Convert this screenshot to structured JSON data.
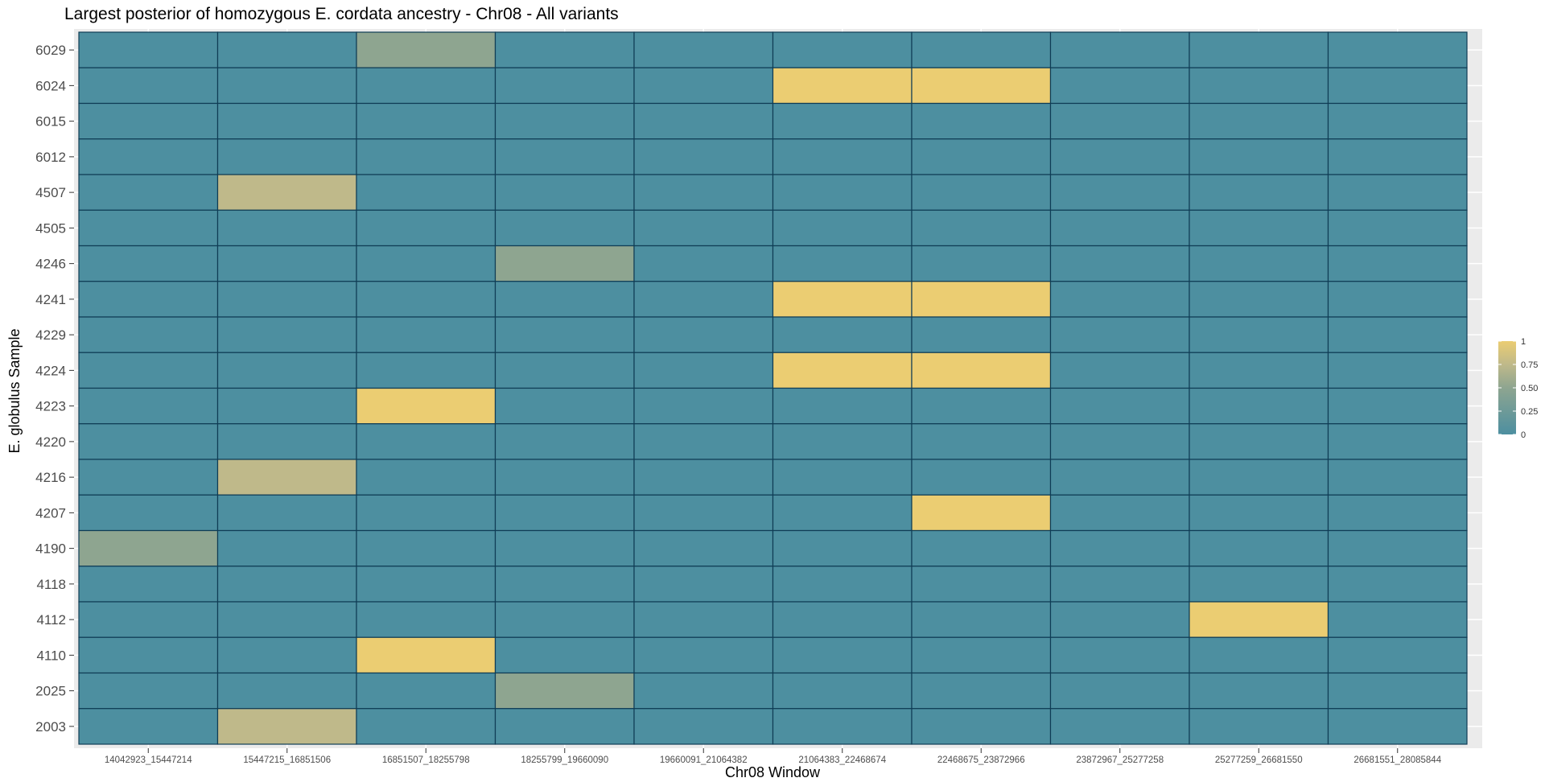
{
  "chart_data": {
    "type": "heatmap",
    "title": "Largest posterior of homozygous E. cordata ancestry - Chr08 - All variants",
    "xlabel": "Chr08 Window",
    "ylabel": "E. globulus Sample",
    "x_categories": [
      "14042923_15447214",
      "15447215_16851506",
      "16851507_18255798",
      "18255799_19660090",
      "19660091_21064382",
      "21064383_22468674",
      "22468675_23872966",
      "23872967_25277258",
      "25277259_26681550",
      "26681551_28085844"
    ],
    "y_categories": [
      "6029",
      "6024",
      "6015",
      "6012",
      "4507",
      "4505",
      "4246",
      "4241",
      "4229",
      "4224",
      "4223",
      "4220",
      "4216",
      "4207",
      "4190",
      "4118",
      "4112",
      "4110",
      "2025",
      "2003"
    ],
    "values": [
      [
        0,
        0,
        0.5,
        0,
        0,
        0,
        0,
        0,
        0,
        0
      ],
      [
        0,
        0,
        0,
        0,
        0,
        1,
        1,
        0,
        0,
        0
      ],
      [
        0,
        0,
        0,
        0,
        0,
        0,
        0,
        0,
        0,
        0
      ],
      [
        0,
        0,
        0,
        0,
        0,
        0,
        0,
        0,
        0,
        0
      ],
      [
        0,
        0.75,
        0,
        0,
        0,
        0,
        0,
        0,
        0,
        0
      ],
      [
        0,
        0,
        0,
        0,
        0,
        0,
        0,
        0,
        0,
        0
      ],
      [
        0,
        0,
        0,
        0.5,
        0,
        0,
        0,
        0,
        0,
        0
      ],
      [
        0,
        0,
        0,
        0,
        0,
        1,
        1,
        0,
        0,
        0
      ],
      [
        0,
        0,
        0,
        0,
        0,
        0,
        0,
        0,
        0,
        0
      ],
      [
        0,
        0,
        0,
        0,
        0,
        1,
        1,
        0,
        0,
        0
      ],
      [
        0,
        0,
        1,
        0,
        0,
        0,
        0,
        0,
        0,
        0
      ],
      [
        0,
        0,
        0,
        0,
        0,
        0,
        0,
        0,
        0,
        0
      ],
      [
        0,
        0.75,
        0,
        0,
        0,
        0,
        0,
        0,
        0,
        0
      ],
      [
        0,
        0,
        0,
        0,
        0,
        0,
        1,
        0,
        0,
        0
      ],
      [
        0.5,
        0,
        0,
        0,
        0,
        0,
        0,
        0,
        0,
        0
      ],
      [
        0,
        0,
        0,
        0,
        0,
        0,
        0,
        0,
        0,
        0
      ],
      [
        0,
        0,
        0,
        0,
        0,
        0,
        0,
        0,
        1,
        0
      ],
      [
        0,
        0,
        1,
        0,
        0,
        0,
        0,
        0,
        0,
        0
      ],
      [
        0,
        0,
        0,
        0.5,
        0,
        0,
        0,
        0,
        0,
        0
      ],
      [
        0,
        0.75,
        0,
        0,
        0,
        0,
        0,
        0,
        0,
        0
      ]
    ],
    "legend": {
      "position": "right",
      "labels": [
        "1",
        "0.75",
        "0.50",
        "0.25",
        "0"
      ],
      "values": [
        1,
        0.75,
        0.5,
        0.25,
        0
      ]
    },
    "color_scale": {
      "low": "#4d8fa0",
      "mid_low": "#8ea590",
      "mid_high": "#bfb98a",
      "high": "#ebcd72"
    },
    "cell_border_color": "#0f3c55",
    "panel_background": "#ebebeb",
    "grid": true
  }
}
